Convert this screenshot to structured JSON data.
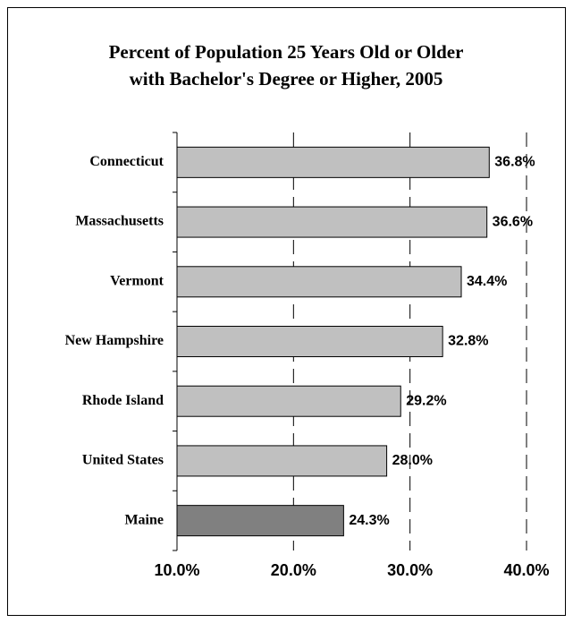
{
  "chart_data": {
    "type": "barh",
    "title": [
      "Percent of Population 25 Years Old or Older",
      "with Bachelor's Degree or Higher, 2005"
    ],
    "categories": [
      "Connecticut",
      "Massachusetts",
      "Vermont",
      "New Hampshire",
      "Rhode Island",
      "United States",
      "Maine"
    ],
    "values": [
      36.8,
      36.6,
      34.4,
      32.8,
      29.2,
      28.0,
      24.3
    ],
    "value_labels": [
      "36.8%",
      "36.6%",
      "34.4%",
      "32.8%",
      "29.2%",
      "28.0%",
      "24.3%"
    ],
    "colors": [
      "#c0c0c0",
      "#c0c0c0",
      "#c0c0c0",
      "#c0c0c0",
      "#c0c0c0",
      "#c0c0c0",
      "#808080"
    ],
    "xlim": [
      10,
      40
    ],
    "xticks": [
      {
        "value": 10,
        "label": "10.0%"
      },
      {
        "value": 20,
        "label": "20.0%"
      },
      {
        "value": 30,
        "label": "30.0%"
      },
      {
        "value": 40,
        "label": "40.0%"
      }
    ],
    "grid": true
  }
}
